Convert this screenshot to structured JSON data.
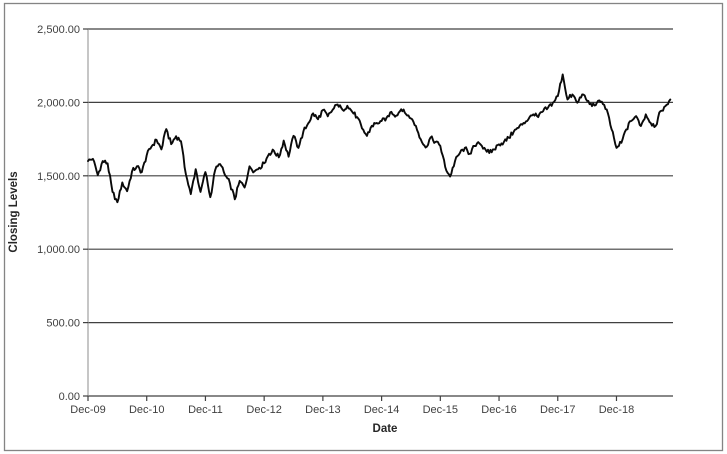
{
  "figure": {
    "background": "#ffffff",
    "border_color": "#848484"
  },
  "chart_data": {
    "type": "line",
    "title": "",
    "xlabel": "Date",
    "ylabel": "Closing Levels",
    "x_start": "Dec-09",
    "x_end": "Nov-19",
    "x_interval": "monthly",
    "x_tick_labels": [
      "Dec-09",
      "Dec-10",
      "Dec-11",
      "Dec-12",
      "Dec-13",
      "Dec-14",
      "Dec-15",
      "Dec-16",
      "Dec-17",
      "Dec-18"
    ],
    "y_ticks": [
      0,
      500,
      1000,
      1500,
      2000,
      2500
    ],
    "y_tick_labels": [
      "0.00",
      "500.00",
      "1,000.00",
      "1,500.00",
      "2,000.00",
      "2,500.00"
    ],
    "ylim": [
      0,
      2500
    ],
    "grid": "horizontal",
    "legend": "none",
    "line_color": "#0a0a0a",
    "grid_color": "#404040",
    "axis_color": "#8e8e8e",
    "series": [
      {
        "name": "Closing Levels",
        "points": [
          1600,
          1615,
          1505,
          1600,
          1585,
          1390,
          1320,
          1455,
          1395,
          1530,
          1565,
          1525,
          1640,
          1700,
          1745,
          1680,
          1818,
          1715,
          1770,
          1735,
          1510,
          1375,
          1545,
          1390,
          1525,
          1355,
          1540,
          1580,
          1505,
          1450,
          1340,
          1465,
          1420,
          1565,
          1530,
          1555,
          1585,
          1650,
          1670,
          1625,
          1740,
          1630,
          1772,
          1690,
          1800,
          1857,
          1925,
          1885,
          1948,
          1905,
          1950,
          1986,
          1950,
          1977,
          1936,
          1900,
          1823,
          1772,
          1840,
          1860,
          1873,
          1895,
          1935,
          1910,
          1953,
          1919,
          1890,
          1840,
          1749,
          1693,
          1760,
          1730,
          1704,
          1560,
          1495,
          1600,
          1655,
          1690,
          1650,
          1703,
          1720,
          1690,
          1655,
          1680,
          1714,
          1730,
          1759,
          1800,
          1827,
          1860,
          1885,
          1918,
          1900,
          1940,
          1964,
          1998,
          2043,
          2191,
          2020,
          2054,
          1998,
          2054,
          2010,
          1975,
          1998,
          2005,
          1952,
          1816,
          1690,
          1725,
          1816,
          1873,
          1907,
          1839,
          1918,
          1860,
          1839,
          1941,
          1975,
          2020
        ]
      }
    ]
  }
}
